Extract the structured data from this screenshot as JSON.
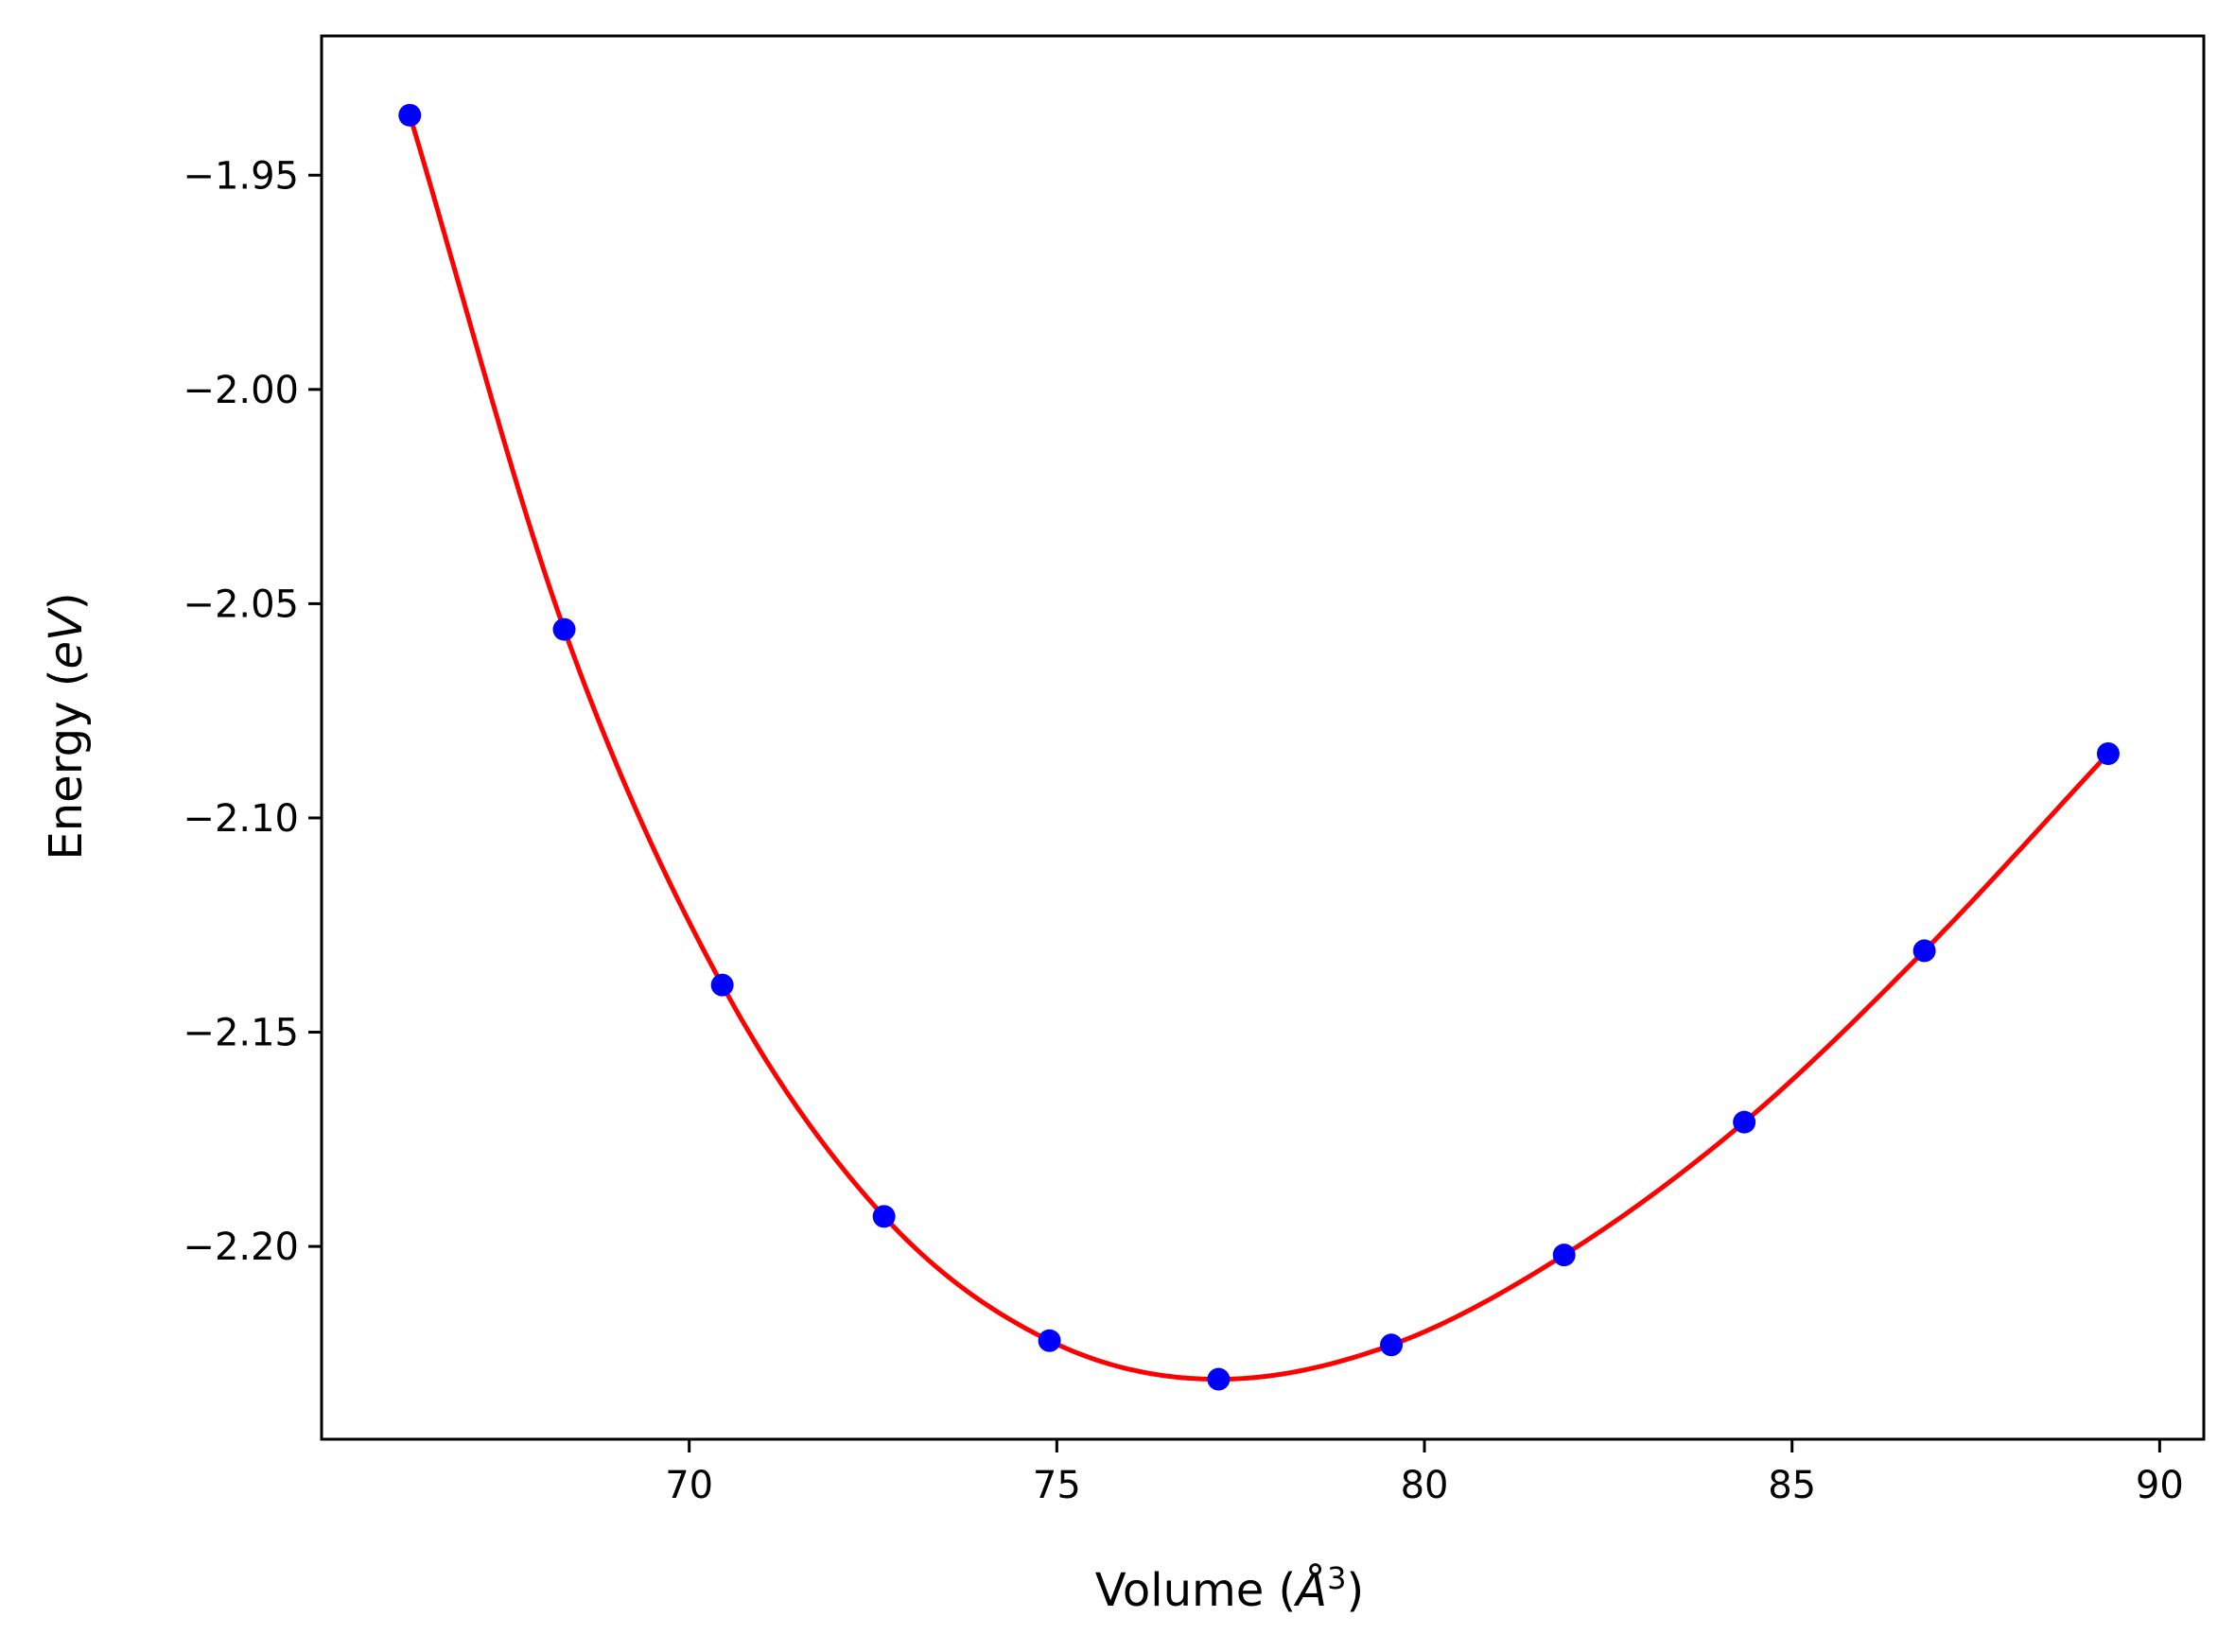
{
  "chart_data": {
    "type": "scatter",
    "xlabel_main": "Volume (",
    "xlabel_unit": "Å",
    "xlabel_sup": "3",
    "xlabel_end": ")",
    "ylabel_main": "Energy (",
    "ylabel_unit": "eV",
    "ylabel_end": ")",
    "xlim": [
      65.0,
      90.6
    ],
    "ylim": [
      -2.245,
      -1.9175
    ],
    "x_ticks": [
      70,
      75,
      80,
      85,
      90
    ],
    "x_tick_labels": [
      "70",
      "75",
      "80",
      "85",
      "90"
    ],
    "y_ticks": [
      -1.95,
      -2.0,
      -2.05,
      -2.1,
      -2.15,
      -2.2
    ],
    "y_tick_labels": [
      "−1.95",
      "−2.00",
      "−2.05",
      "−2.10",
      "−2.15",
      "−2.20"
    ],
    "grid": false,
    "series": [
      {
        "marker_color": "#0000ff",
        "line_color": "#ff0000",
        "x": [
          66.2,
          68.3,
          70.45,
          72.65,
          74.9,
          77.2,
          79.55,
          81.9,
          84.35,
          86.8,
          89.3
        ],
        "y": [
          -1.936,
          -2.056,
          -2.139,
          -2.193,
          -2.222,
          -2.231,
          -2.223,
          -2.202,
          -2.171,
          -2.131,
          -2.085
        ]
      }
    ]
  }
}
